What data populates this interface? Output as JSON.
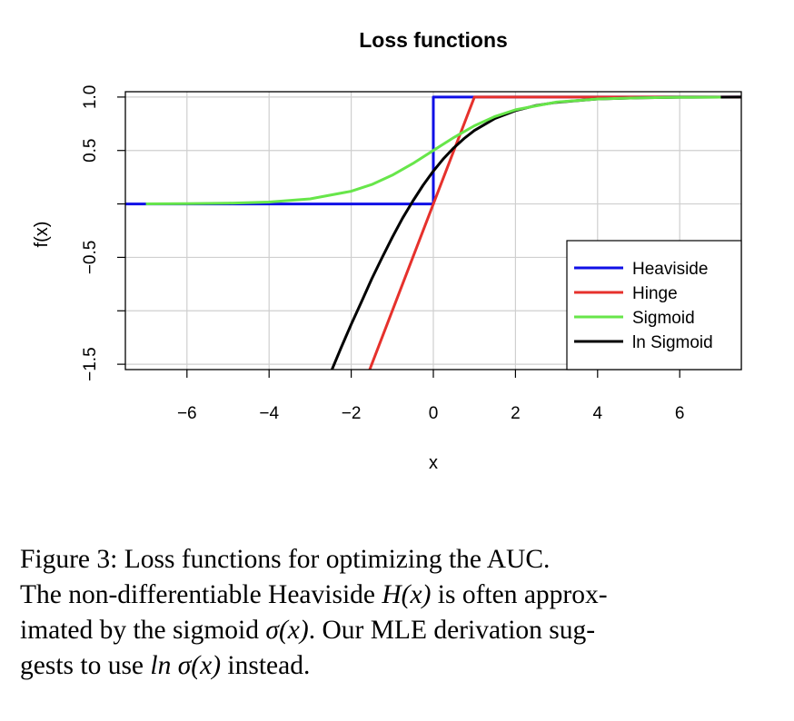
{
  "chart_data": {
    "type": "line",
    "title": "Loss functions",
    "xlabel": "x",
    "ylabel": "f(x)",
    "xlim": [
      -7.5,
      7.5
    ],
    "ylim": [
      -1.55,
      1.05
    ],
    "xticks": [
      -6,
      -4,
      -2,
      0,
      2,
      4,
      6
    ],
    "xtick_labels": [
      "−6",
      "−4",
      "−2",
      "0",
      "2",
      "4",
      "6"
    ],
    "yticks": [
      -1.5,
      -1.0,
      -0.5,
      0.0,
      0.5,
      1.0
    ],
    "ytick_labels": [
      "−1.5",
      "",
      "−0.5",
      "",
      "0.5",
      "1.0"
    ],
    "grid": true,
    "legend_position": "bottom-right",
    "series": [
      {
        "name": "Heaviside",
        "color": "#1010e6",
        "x": [
          -7.5,
          0,
          0,
          7.5
        ],
        "y": [
          0,
          0,
          1,
          1
        ]
      },
      {
        "name": "Hinge",
        "color": "#e6312c",
        "x": [
          -1.6,
          1,
          7.5
        ],
        "y": [
          -1.6,
          1,
          1
        ]
      },
      {
        "name": "Sigmoid",
        "color": "#67e64a",
        "x": [
          -7,
          -6,
          -5,
          -4,
          -3,
          -2,
          -1.5,
          -1,
          -0.5,
          0,
          0.5,
          1,
          1.5,
          2,
          3,
          4,
          5,
          6,
          7
        ],
        "y": [
          0.001,
          0.002,
          0.007,
          0.018,
          0.047,
          0.119,
          0.182,
          0.269,
          0.378,
          0.5,
          0.622,
          0.731,
          0.818,
          0.881,
          0.953,
          0.982,
          0.993,
          0.998,
          0.999
        ]
      },
      {
        "name": "ln Sigmoid",
        "color": "#000000",
        "x": [
          -2.5,
          -2.25,
          -2,
          -1.75,
          -1.5,
          -1.25,
          -1,
          -0.75,
          -0.5,
          -0.25,
          0,
          0.25,
          0.5,
          0.75,
          1,
          1.5,
          2,
          2.5,
          3,
          4,
          5,
          6,
          7,
          7.5
        ],
        "y": [
          -1.579,
          -1.349,
          -1.127,
          -0.916,
          -0.701,
          -0.504,
          -0.313,
          -0.134,
          0.026,
          0.175,
          0.307,
          0.425,
          0.526,
          0.612,
          0.687,
          0.799,
          0.873,
          0.921,
          0.951,
          0.982,
          0.993,
          0.998,
          0.999,
          0.9995
        ]
      }
    ]
  },
  "caption": {
    "line1": "Figure 3:  Loss functions for optimizing the AUC.",
    "line2_pre": "The non-differentiable Heaviside ",
    "line2_math": "H(x)",
    "line2_post": " is often approx-",
    "line3_pre": "imated by the sigmoid ",
    "line3_math": "σ(x)",
    "line3_post": ".  Our MLE derivation sug-",
    "line4_pre": "gests to use ",
    "line4_math": "ln σ(x)",
    "line4_post": " instead."
  }
}
